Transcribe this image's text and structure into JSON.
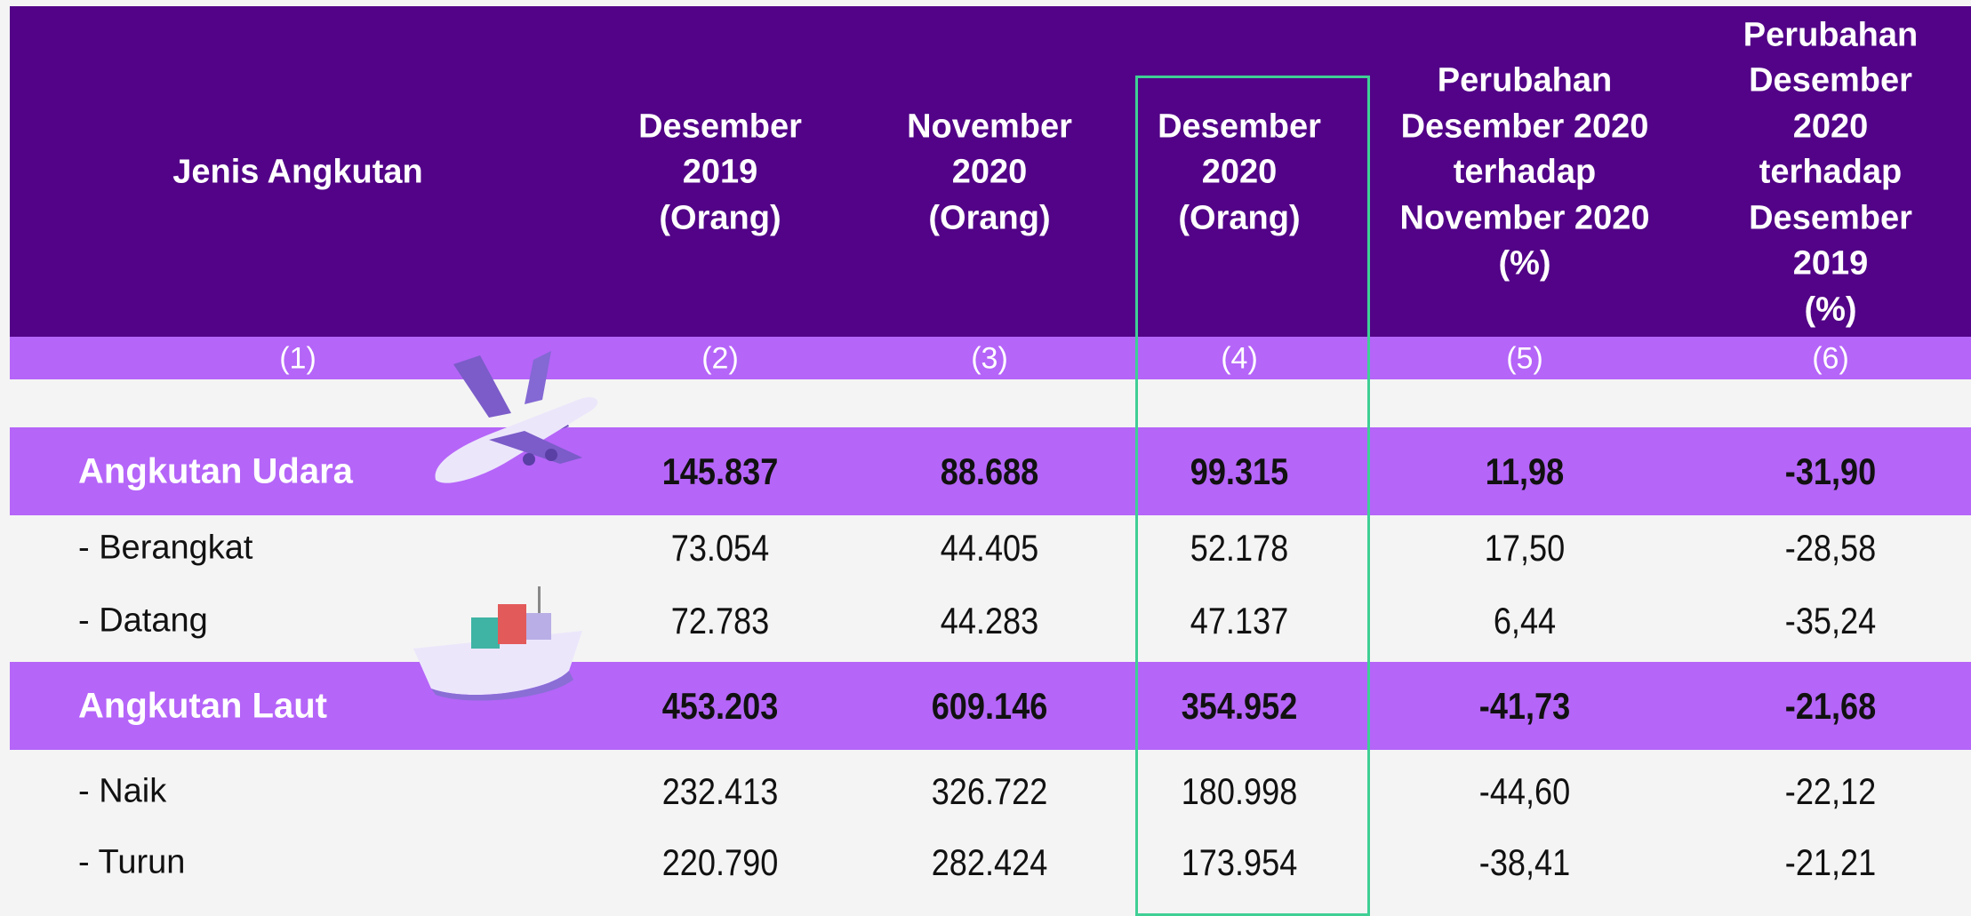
{
  "table": {
    "headers": [
      [
        "Jenis Angkutan"
      ],
      [
        "Desember",
        "2019",
        "(Orang)"
      ],
      [
        "November",
        "2020",
        "(Orang)"
      ],
      [
        "Desember",
        "2020",
        "(Orang)"
      ],
      [
        "Perubahan",
        "Desember 2020",
        "terhadap",
        "November 2020",
        "(%)"
      ],
      [
        "Perubahan",
        "Desember",
        "2020",
        "terhadap",
        "Desember",
        "2019",
        "(%)"
      ]
    ],
    "column_numbers": [
      "(1)",
      "(2)",
      "(3)",
      "(4)",
      "(5)",
      "(6)"
    ],
    "groups": [
      {
        "name": "Angkutan Udara",
        "values": [
          "145.837",
          "88.688",
          "99.315",
          "11,98",
          "-31,90"
        ],
        "items": [
          {
            "label": "- Berangkat",
            "values": [
              "73.054",
              "44.405",
              "52.178",
              "17,50",
              "-28,58"
            ]
          },
          {
            "label": "- Datang",
            "values": [
              "72.783",
              "44.283",
              "47.137",
              "6,44",
              "-35,24"
            ]
          }
        ]
      },
      {
        "name": "Angkutan Laut",
        "values": [
          "453.203",
          "609.146",
          "354.952",
          "-41,73",
          "-21,68"
        ],
        "items": [
          {
            "label": "- Naik",
            "values": [
              "232.413",
              "326.722",
              "180.998",
              "-44,60",
              "-22,12"
            ]
          },
          {
            "label": "- Turun",
            "values": [
              "220.790",
              "282.424",
              "173.954",
              "-38,41",
              "-21,21"
            ]
          }
        ]
      }
    ]
  }
}
